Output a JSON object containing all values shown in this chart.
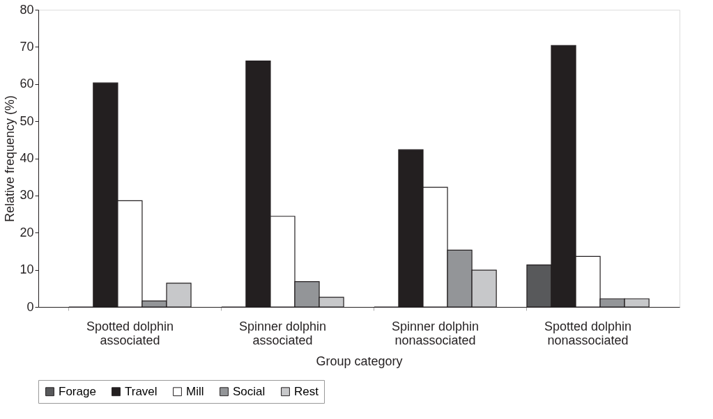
{
  "chart_data": {
    "type": "bar",
    "xlabel": "Group category",
    "ylabel": "Relative frequency (%)",
    "categories": [
      "Spotted dolphin associated",
      "Spinner dolphin associated",
      "Spinner dolphin nonassociated",
      "Spotted dolphin nonassociated"
    ],
    "series": [
      {
        "name": "Forage",
        "color": "#58595b",
        "values": [
          0,
          0,
          0,
          11.3
        ]
      },
      {
        "name": "Travel",
        "color": "#231f20",
        "values": [
          60.3,
          66.2,
          42.3,
          70.4
        ]
      },
      {
        "name": "Mill",
        "color": "#ffffff",
        "values": [
          28.6,
          24.4,
          32.2,
          13.6
        ]
      },
      {
        "name": "Social",
        "color": "#939598",
        "values": [
          1.6,
          6.8,
          15.3,
          2.2
        ]
      },
      {
        "name": "Rest",
        "color": "#c7c8ca",
        "values": [
          6.4,
          2.6,
          9.9,
          2.2
        ]
      }
    ],
    "ylim": [
      0,
      80
    ],
    "yticks": [
      0,
      10,
      20,
      30,
      40,
      50,
      60,
      70,
      80
    ],
    "grid": false,
    "legend": "bottom"
  }
}
